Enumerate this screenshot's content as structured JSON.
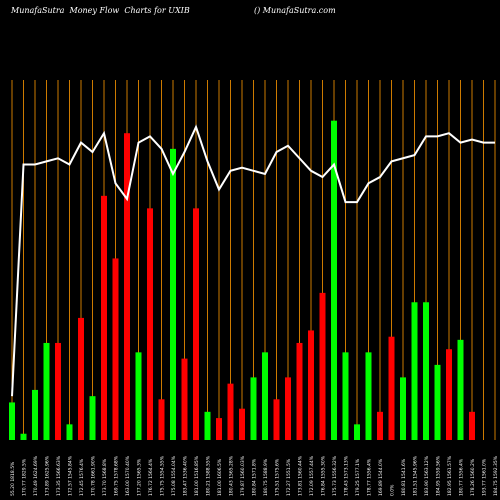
{
  "header": {
    "title": "MunafaSutra  Money Flow  Charts for UXIB",
    "watermark": "() MunafaSutra.com"
  },
  "chart_data": {
    "type": "bar",
    "title": "MunafaSutra  Money Flow  Charts for UXIB",
    "colors": {
      "up": "#00ff00",
      "down": "#ff0000",
      "line": "#ffffff",
      "grid": "#cc7a00",
      "background": "#000000"
    },
    "grid": true,
    "categories": [
      "55.20 1818.5%",
      "170.77 1829.5%",
      "170.49 1624.69%",
      "173.89 1625.96%",
      "173.35 1566.63%",
      "172.57 1545.84%",
      "172.45 1576.4%",
      "170.78 1661.90%",
      "173.70 1568.8%",
      "169.75 1578.68%",
      "163.00 1570.40%",
      "177.20 1565.3%",
      "176.72 1564.4%",
      "175.75 1554.55%",
      "175.08 1554.04%",
      "183.47 1536.40%",
      "181.00 1516.85%",
      "180.21 1588.55%",
      "181.00 1606.5%",
      "180.43 1565.28%",
      "179.87 1560.03%",
      "180.84 1571.8%",
      "180.75 1588.9%",
      "175.51 1575.6%",
      "172.27 1551.5%",
      "173.81 1560.44%",
      "172.09 1557.44%",
      "176.84 1555.30%",
      "175.73 1556.32%",
      "178.43 1573.13%",
      "179.25 1577.1%",
      "178.77 1556.4%",
      "169.89 1544.0%",
      "0.0%",
      "180.81 1541.6%",
      "181.51 1545.96%",
      "183.90 1563.12%",
      "184.95 1559.56%",
      "182.95 1561.57%",
      "180.77 1556.4%",
      "178.26 1560.2%",
      "193.77 1561.0%",
      "184.75 1592.35%"
    ],
    "series": [
      {
        "values": [
          12,
          2,
          16,
          31,
          31,
          5,
          39,
          14,
          78,
          58,
          98,
          28,
          74,
          13,
          93,
          26,
          74,
          9,
          7,
          18,
          10,
          20,
          28,
          13,
          20,
          31,
          35,
          47,
          102,
          28,
          5,
          28,
          9,
          33,
          20,
          44,
          44,
          24,
          29,
          32,
          9,
          0,
          0
        ],
        "directions": [
          "up",
          "up",
          "up",
          "up",
          "down",
          "up",
          "down",
          "up",
          "down",
          "down",
          "down",
          "up",
          "down",
          "down",
          "up",
          "down",
          "down",
          "up",
          "down",
          "down",
          "down",
          "up",
          "up",
          "down",
          "down",
          "down",
          "down",
          "down",
          "up",
          "up",
          "up",
          "up",
          "down",
          "down",
          "up",
          "up",
          "up",
          "up",
          "down",
          "up",
          "down",
          "up",
          "up"
        ]
      }
    ],
    "flow_line": [
      14,
      88,
      88,
      89,
      90,
      88,
      95,
      92,
      98,
      82,
      77,
      95,
      97,
      93,
      85,
      92,
      100,
      89,
      80,
      86,
      87,
      86,
      85,
      92,
      94,
      90,
      86,
      84,
      88,
      76,
      76,
      82,
      84,
      89,
      90,
      91,
      97,
      97,
      98,
      95,
      96,
      95,
      95
    ],
    "ylim": [
      0,
      115
    ]
  }
}
